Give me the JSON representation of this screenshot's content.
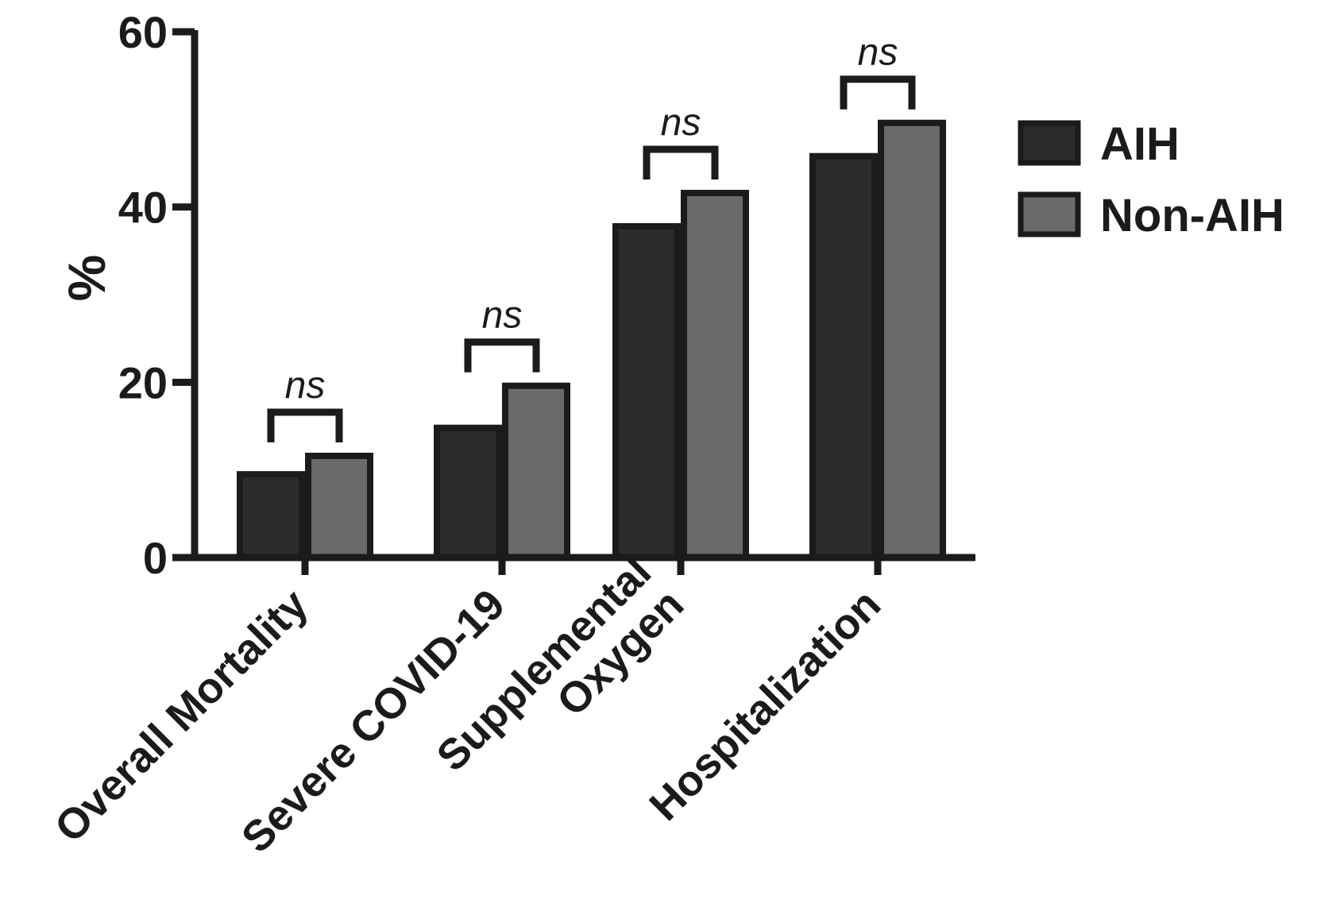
{
  "chart_data": {
    "type": "bar",
    "ylabel": "%",
    "ylim": [
      0,
      60
    ],
    "yticks": [
      0,
      20,
      40,
      60
    ],
    "categories": [
      "Overall Mortality",
      "Severe COVID-19",
      "Supplemental Oxygen",
      "Hospitalization"
    ],
    "category_lines": [
      [
        "Overall Mortality"
      ],
      [
        "Severe COVID-19"
      ],
      [
        "Supplemental",
        "Oxygen"
      ],
      [
        "Hospitalization"
      ]
    ],
    "series": [
      {
        "name": "AIH",
        "values": [
          9.5,
          14.8,
          37.8,
          45.8
        ],
        "color": "#2b2b2b"
      },
      {
        "name": "Non-AIH",
        "values": [
          11.6,
          19.6,
          41.6,
          49.6
        ],
        "color": "#6a6a6a"
      }
    ],
    "annotations": [
      "ns",
      "ns",
      "ns",
      "ns"
    ],
    "legend_position": "right",
    "grid": false
  }
}
